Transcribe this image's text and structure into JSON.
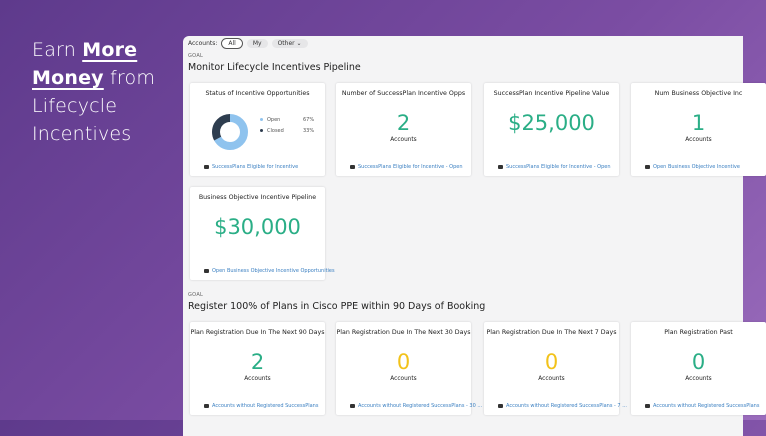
{
  "hero": {
    "earn": "Earn",
    "more": "More",
    "money": "Money",
    "from": "from",
    "line3": "Lifecycle",
    "line4": "Incentives"
  },
  "filters": {
    "label": "Accounts:",
    "options": [
      "All",
      "My",
      "Other ⌄"
    ],
    "selected": 0
  },
  "sections": [
    {
      "goal": "GOAL",
      "title": "Monitor Lifecycle Incentives Pipeline",
      "cards": [
        {
          "title": "Status of Incentive Opportunities",
          "footer": "SuccessPlans Eligible for Incentive",
          "chart_data": {
            "type": "pie",
            "categories": [
              "Open",
              "Closed"
            ],
            "values": [
              67,
              33
            ],
            "value_labels": [
              "67%",
              "33%"
            ],
            "colors": [
              "#8fc3ee",
              "#2e3d4f"
            ]
          }
        },
        {
          "title": "Number of SuccessPlan Incentive Opps",
          "value": "2",
          "subtitle": "Accounts",
          "color": "#2aae86",
          "footer": "SuccessPlans Eligible for Incentive - Open"
        },
        {
          "title": "SuccessPlan Incentive Pipeline Value",
          "value": "$25,000",
          "color": "#2aae86",
          "footer": "SuccessPlans Eligible for Incentive - Open"
        },
        {
          "title": "Num Business Objective Inc",
          "value": "1",
          "subtitle": "Accounts",
          "color": "#2aae86",
          "footer": "Open Business Objective Incentive"
        },
        {
          "title": "Business Objective Incentive Pipeline",
          "value": "$30,000",
          "color": "#2aae86",
          "footer": "Open Business Objective Incentive Opportunities"
        }
      ]
    },
    {
      "goal": "GOAL",
      "title": "Register 100% of Plans in Cisco PPE within 90 Days of Booking",
      "cards": [
        {
          "title": "Plan Registration Due In The Next 90 Days",
          "value": "2",
          "subtitle": "Accounts",
          "color": "#2aae86",
          "footer": "Accounts without Registered SuccessPlans"
        },
        {
          "title": "Plan Registration Due In The Next 30 Days",
          "value": "0",
          "subtitle": "Accounts",
          "color": "#f2c21a",
          "footer": "Accounts without Registered SuccessPlans - 30 ..."
        },
        {
          "title": "Plan Registration Due In The Next 7 Days",
          "value": "0",
          "subtitle": "Accounts",
          "color": "#f2c21a",
          "footer": "Accounts without Registered SuccessPlans - 7 ..."
        },
        {
          "title": "Plan Registration Past",
          "value": "0",
          "subtitle": "Accounts",
          "color": "#2aae86",
          "footer": "Accounts without Registered SuccessPlans"
        }
      ]
    }
  ]
}
